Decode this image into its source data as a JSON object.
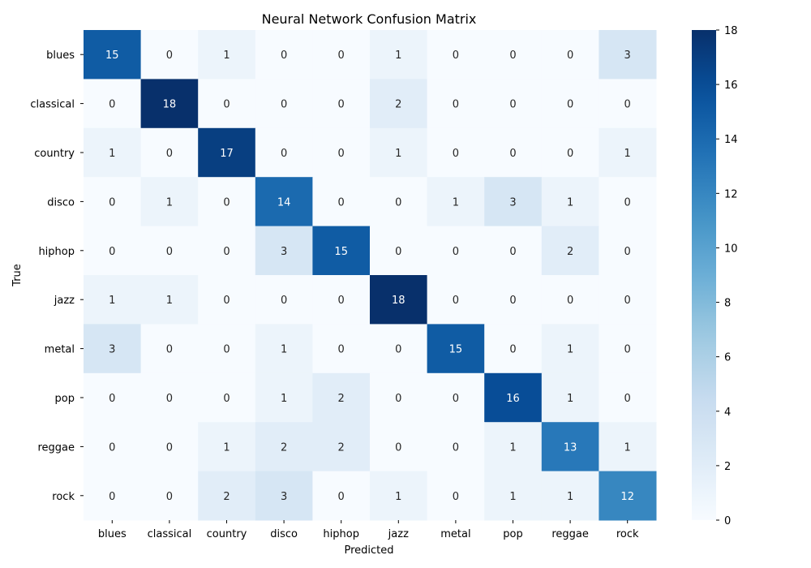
{
  "chart_data": {
    "type": "heatmap",
    "title": "Neural Network Confusion Matrix",
    "xlabel": "Predicted",
    "ylabel": "True",
    "x_categories": [
      "blues",
      "classical",
      "country",
      "disco",
      "hiphop",
      "jazz",
      "metal",
      "pop",
      "reggae",
      "rock"
    ],
    "y_categories": [
      "blues",
      "classical",
      "country",
      "disco",
      "hiphop",
      "jazz",
      "metal",
      "pop",
      "reggae",
      "rock"
    ],
    "values": [
      [
        15,
        0,
        1,
        0,
        0,
        1,
        0,
        0,
        0,
        3
      ],
      [
        0,
        18,
        0,
        0,
        0,
        2,
        0,
        0,
        0,
        0
      ],
      [
        1,
        0,
        17,
        0,
        0,
        1,
        0,
        0,
        0,
        1
      ],
      [
        0,
        1,
        0,
        14,
        0,
        0,
        1,
        3,
        1,
        0
      ],
      [
        0,
        0,
        0,
        3,
        15,
        0,
        0,
        0,
        2,
        0
      ],
      [
        1,
        1,
        0,
        0,
        0,
        18,
        0,
        0,
        0,
        0
      ],
      [
        3,
        0,
        0,
        1,
        0,
        0,
        15,
        0,
        1,
        0
      ],
      [
        0,
        0,
        0,
        1,
        2,
        0,
        0,
        16,
        1,
        0
      ],
      [
        0,
        0,
        1,
        2,
        2,
        0,
        0,
        1,
        13,
        1
      ],
      [
        0,
        0,
        2,
        3,
        0,
        1,
        0,
        1,
        1,
        12
      ]
    ],
    "colormap": "Blues",
    "colorbar": {
      "range": [
        0,
        18
      ],
      "ticks": [
        0,
        2,
        4,
        6,
        8,
        10,
        12,
        14,
        16,
        18
      ]
    },
    "annotations": true,
    "grid": false,
    "colors": {
      "low": "#f7fbff",
      "high": "#08306b"
    }
  }
}
